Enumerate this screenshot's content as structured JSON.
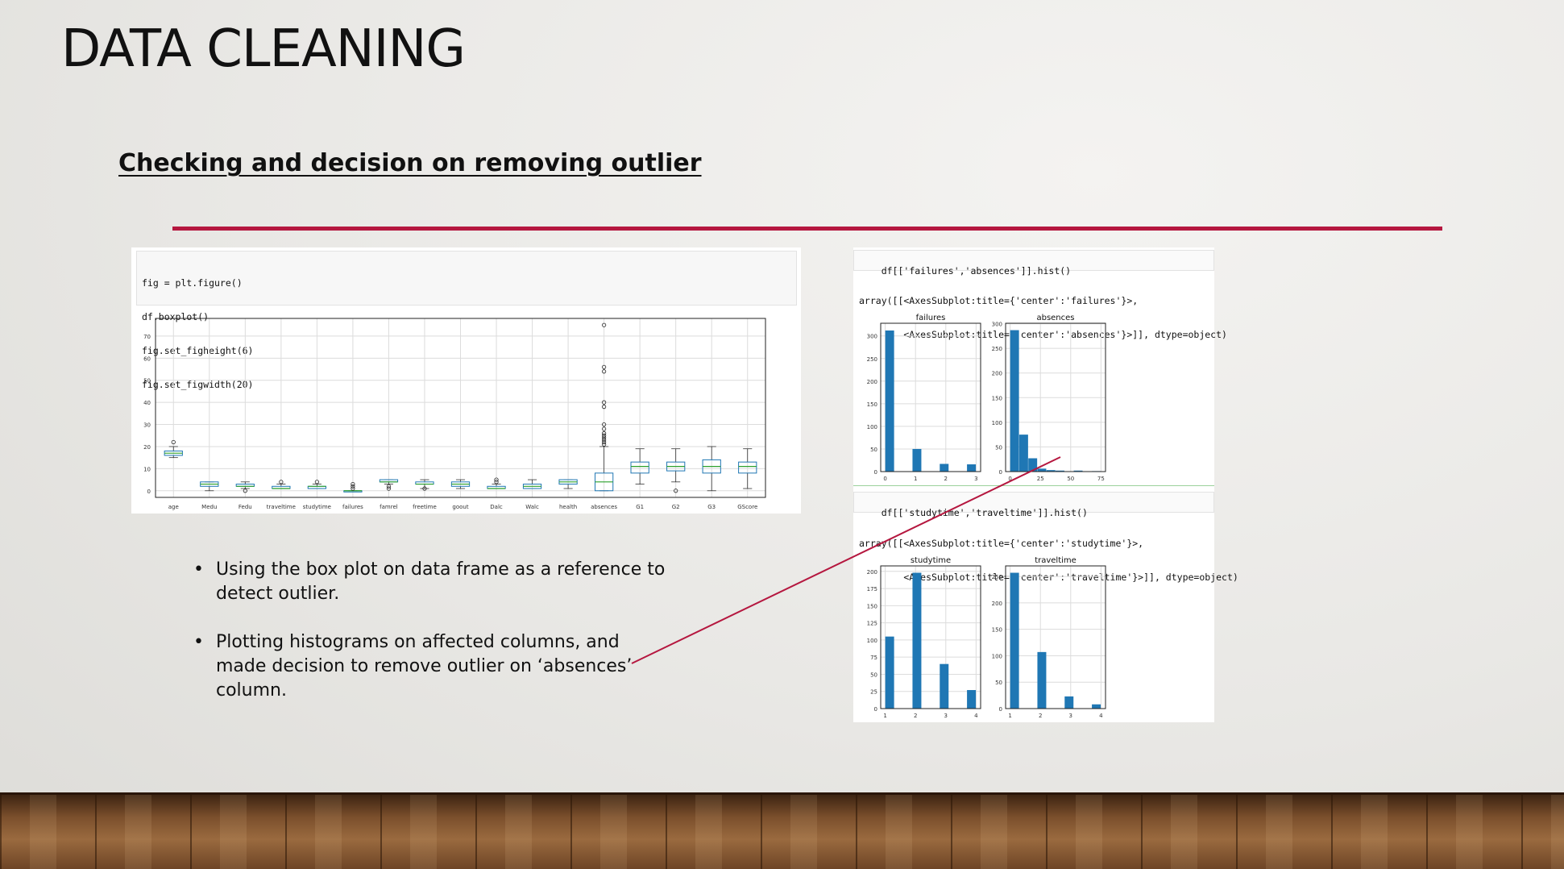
{
  "slide": {
    "title": "DATA CLEANING",
    "subtitle": "Checking and decision on removing outlier",
    "accent_color": "#b5173f"
  },
  "boxplot_panel": {
    "code_lines": [
      "fig = plt.figure()",
      "df.boxplot()",
      "fig.set_figheight(6)",
      "fig.set_figwidth(20)"
    ]
  },
  "hist_panel_1": {
    "code": "df[['failures','absences']].hist()",
    "output_lines": [
      "array([[<AxesSubplot:title={'center':'failures'}>,",
      "        <AxesSubplot:title={'center':'absences'}>]], dtype=object)"
    ]
  },
  "hist_panel_2": {
    "code": "df[['studytime','traveltime']].hist()",
    "output_lines": [
      "array([[<AxesSubplot:title={'center':'studytime'}>,",
      "        <AxesSubplot:title={'center':'traveltime'}>]], dtype=object)"
    ]
  },
  "bullets": [
    "Using the box plot on data frame as a reference to detect outlier.",
    "Plotting histograms on affected columns, and made decision to remove outlier on ‘absences’ column."
  ],
  "chart_data": [
    {
      "type": "box",
      "categories": [
        "age",
        "Medu",
        "Fedu",
        "traveltime",
        "studytime",
        "failures",
        "famrel",
        "freetime",
        "goout",
        "Dalc",
        "Walc",
        "health",
        "absences",
        "G1",
        "G2",
        "G3",
        "GScore"
      ],
      "ylim": [
        -3,
        78
      ],
      "yticks": [
        0,
        10,
        20,
        30,
        40,
        50,
        60,
        70
      ],
      "grid": true,
      "box_color": "#1f77b4",
      "median_color": "#2ca02c",
      "boxes": [
        {
          "lo": 15,
          "q1": 16,
          "med": 17,
          "q3": 18,
          "hi": 20,
          "out": [
            22
          ]
        },
        {
          "lo": 0,
          "q1": 2,
          "med": 3,
          "q3": 4,
          "hi": 4,
          "out": []
        },
        {
          "lo": 1,
          "q1": 2,
          "med": 2,
          "q3": 3,
          "hi": 4,
          "out": [
            0
          ]
        },
        {
          "lo": 1,
          "q1": 1,
          "med": 1,
          "q3": 2,
          "hi": 3,
          "out": [
            4
          ]
        },
        {
          "lo": 1,
          "q1": 1,
          "med": 2,
          "q3": 2,
          "hi": 3,
          "out": [
            4
          ]
        },
        {
          "lo": 0,
          "q1": 0,
          "med": 0,
          "q3": 0,
          "hi": 0,
          "out": [
            1,
            2,
            3
          ]
        },
        {
          "lo": 3,
          "q1": 4,
          "med": 4,
          "q3": 5,
          "hi": 5,
          "out": [
            1,
            2
          ]
        },
        {
          "lo": 1,
          "q1": 3,
          "med": 3,
          "q3": 4,
          "hi": 5,
          "out": [
            1
          ]
        },
        {
          "lo": 1,
          "q1": 2,
          "med": 3,
          "q3": 4,
          "hi": 5,
          "out": []
        },
        {
          "lo": 1,
          "q1": 1,
          "med": 1,
          "q3": 2,
          "hi": 3,
          "out": [
            4,
            5
          ]
        },
        {
          "lo": 1,
          "q1": 1,
          "med": 2,
          "q3": 3,
          "hi": 5,
          "out": []
        },
        {
          "lo": 1,
          "q1": 3,
          "med": 4,
          "q3": 5,
          "hi": 5,
          "out": []
        },
        {
          "lo": 0,
          "q1": 0,
          "med": 4,
          "q3": 8,
          "hi": 20,
          "out": [
            21,
            22,
            23,
            24,
            25,
            26,
            28,
            30,
            38,
            40,
            54,
            56,
            75
          ]
        },
        {
          "lo": 3,
          "q1": 8,
          "med": 11,
          "q3": 13,
          "hi": 19,
          "out": []
        },
        {
          "lo": 4,
          "q1": 9,
          "med": 11,
          "q3": 13,
          "hi": 19,
          "out": [
            0
          ]
        },
        {
          "lo": 0,
          "q1": 8,
          "med": 11,
          "q3": 14,
          "hi": 20,
          "out": []
        },
        {
          "lo": 1,
          "q1": 8,
          "med": 11,
          "q3": 13,
          "hi": 19,
          "out": []
        }
      ]
    },
    {
      "type": "bar",
      "title": "failures",
      "x": [
        0,
        0.3,
        0.6,
        0.9,
        1.2,
        1.5,
        1.8,
        2.1,
        2.4,
        2.7
      ],
      "bin_width": 0.3,
      "values": [
        312,
        0,
        0,
        50,
        0,
        0,
        17,
        0,
        0,
        16
      ],
      "xticks": [
        0,
        1,
        2,
        3
      ],
      "xlim": [
        -0.15,
        3.15
      ],
      "yticks": [
        0,
        50,
        100,
        150,
        200,
        250,
        300
      ],
      "ylim": [
        0,
        328
      ],
      "color": "#1f77b4"
    },
    {
      "type": "bar",
      "title": "absences",
      "x": [
        0,
        7.5,
        15,
        22.5,
        30,
        37.5,
        45,
        52.5,
        60,
        67.5
      ],
      "bin_width": 7.5,
      "values": [
        287,
        75,
        27,
        6,
        3,
        2,
        0,
        2,
        0,
        1
      ],
      "xticks": [
        0,
        25,
        50,
        75
      ],
      "xlim": [
        -3.75,
        78.75
      ],
      "yticks": [
        0,
        50,
        100,
        150,
        200,
        250,
        300
      ],
      "ylim": [
        0,
        301
      ],
      "color": "#1f77b4"
    },
    {
      "type": "bar",
      "title": "studytime",
      "x": [
        1,
        1.3,
        1.6,
        1.9,
        2.2,
        2.5,
        2.8,
        3.1,
        3.4,
        3.7
      ],
      "bin_width": 0.3,
      "values": [
        105,
        0,
        0,
        198,
        0,
        0,
        65,
        0,
        0,
        27
      ],
      "xticks": [
        1,
        2,
        3,
        4
      ],
      "xlim": [
        0.85,
        4.15
      ],
      "yticks": [
        0,
        25,
        50,
        75,
        100,
        125,
        150,
        175,
        200
      ],
      "ylim": [
        0,
        208
      ],
      "color": "#1f77b4"
    },
    {
      "type": "bar",
      "title": "traveltime",
      "x": [
        1,
        1.3,
        1.6,
        1.9,
        2.2,
        2.5,
        2.8,
        3.1,
        3.4,
        3.7
      ],
      "bin_width": 0.3,
      "values": [
        257,
        0,
        0,
        107,
        0,
        0,
        23,
        0,
        0,
        8
      ],
      "xticks": [
        1,
        2,
        3,
        4
      ],
      "xlim": [
        0.85,
        4.15
      ],
      "yticks": [
        0,
        50,
        100,
        150,
        200,
        250
      ],
      "ylim": [
        0,
        270
      ],
      "color": "#1f77b4"
    }
  ]
}
